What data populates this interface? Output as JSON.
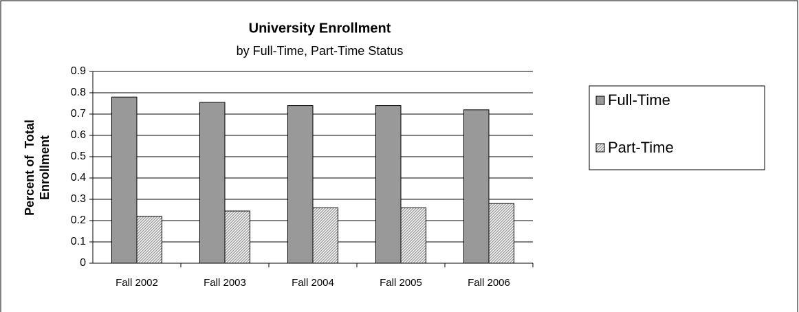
{
  "chart_data": {
    "type": "bar",
    "title": "University Enrollment",
    "subtitle": "by Full-Time, Part-Time Status",
    "y_label": "Percent of  Total Enrollment",
    "categories": [
      "Fall 2002",
      "Fall 2003",
      "Fall 2004",
      "Fall 2005",
      "Fall 2006"
    ],
    "series": [
      {
        "name": "Full-Time",
        "color": "#999999",
        "values": [
          0.78,
          0.755,
          0.74,
          0.74,
          0.72
        ]
      },
      {
        "name": "Part-Time",
        "color": "#999999",
        "hatch": true,
        "values": [
          0.22,
          0.245,
          0.26,
          0.26,
          0.28
        ]
      }
    ],
    "ylim": [
      0,
      0.9
    ],
    "yticks": [
      0,
      0.1,
      0.2,
      0.3,
      0.4,
      0.5,
      0.6,
      0.7,
      0.8,
      0.9
    ],
    "grid": true,
    "legend": "right"
  }
}
